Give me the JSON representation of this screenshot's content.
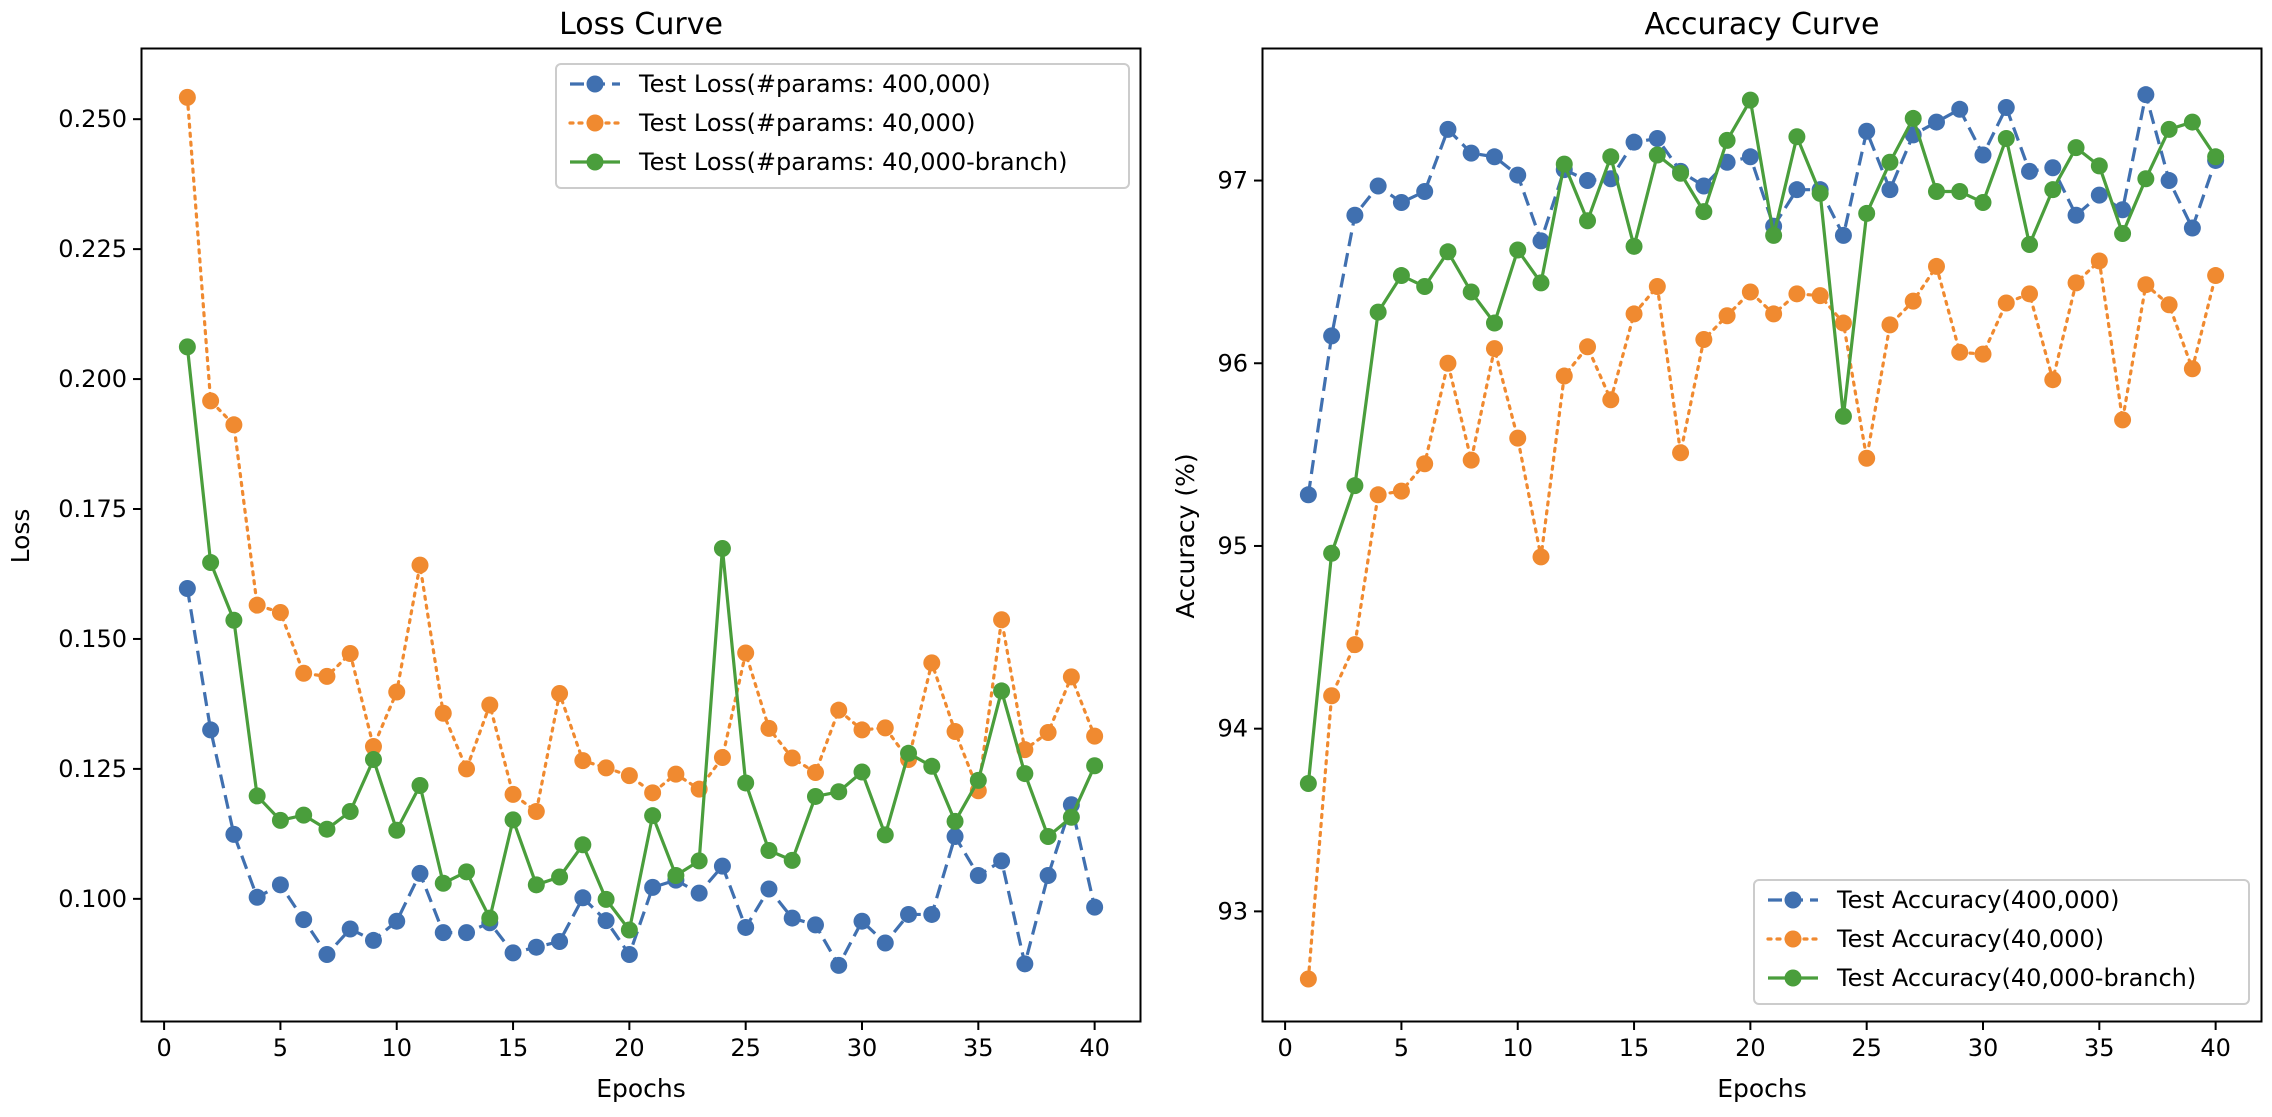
{
  "chart_data": [
    {
      "type": "line",
      "title": "Loss Curve",
      "xlabel": "Epochs",
      "ylabel": "Loss",
      "xlim": [
        -0.95,
        41.95
      ],
      "ylim": [
        0.0765,
        0.2635
      ],
      "xticks": [
        0,
        5,
        10,
        15,
        20,
        25,
        30,
        35,
        40
      ],
      "yticks": [
        0.1,
        0.125,
        0.15,
        0.175,
        0.2,
        0.225,
        0.25
      ],
      "ytick_labels": [
        "0.100",
        "0.125",
        "0.150",
        "0.175",
        "0.200",
        "0.225",
        "0.250"
      ],
      "legend_loc": "upper right",
      "grid": false,
      "x": [
        1,
        2,
        3,
        4,
        5,
        6,
        7,
        8,
        9,
        10,
        11,
        12,
        13,
        14,
        15,
        16,
        17,
        18,
        19,
        20,
        21,
        22,
        23,
        24,
        25,
        26,
        27,
        28,
        29,
        30,
        31,
        32,
        33,
        34,
        35,
        36,
        37,
        38,
        39,
        40
      ],
      "series": [
        {
          "name": "Test Loss(#params: 400,000)",
          "color": "#4070b0",
          "linestyle": "dashed",
          "values": [
            0.1597,
            0.1325,
            0.1124,
            0.1003,
            0.1027,
            0.096,
            0.0893,
            0.0942,
            0.092,
            0.0957,
            0.1049,
            0.0935,
            0.0935,
            0.0954,
            0.0896,
            0.0907,
            0.0918,
            0.1002,
            0.0958,
            0.0893,
            0.1022,
            0.1036,
            0.1011,
            0.1063,
            0.0945,
            0.1019,
            0.0963,
            0.095,
            0.0872,
            0.0957,
            0.0915,
            0.097,
            0.097,
            0.112,
            0.1045,
            0.1073,
            0.0875,
            0.1045,
            0.1181,
            0.0984
          ]
        },
        {
          "name": "Test Loss(#params: 40,000)",
          "color": "#f08a30",
          "linestyle": "dotted",
          "values": [
            0.2542,
            0.1958,
            0.1912,
            0.1565,
            0.1551,
            0.1434,
            0.1428,
            0.1472,
            0.1293,
            0.1398,
            0.1642,
            0.1357,
            0.125,
            0.1373,
            0.1201,
            0.1168,
            0.1395,
            0.1266,
            0.1252,
            0.1237,
            0.1204,
            0.124,
            0.1211,
            0.1272,
            0.1473,
            0.1328,
            0.1271,
            0.1243,
            0.1363,
            0.1325,
            0.1329,
            0.1268,
            0.1454,
            0.1322,
            0.1208,
            0.1537,
            0.1287,
            0.132,
            0.1427,
            0.1313
          ]
        },
        {
          "name": "Test Loss(#params: 40,000-branch)",
          "color": "#4a9e3c",
          "linestyle": "solid",
          "values": [
            0.2062,
            0.1647,
            0.1536,
            0.1198,
            0.1151,
            0.1161,
            0.1134,
            0.1168,
            0.1268,
            0.1132,
            0.1218,
            0.103,
            0.1052,
            0.0963,
            0.1152,
            0.1027,
            0.1042,
            0.1104,
            0.0999,
            0.094,
            0.116,
            0.1045,
            0.1073,
            0.1674,
            0.1223,
            0.1093,
            0.1074,
            0.1197,
            0.1206,
            0.1244,
            0.1123,
            0.128,
            0.1255,
            0.1149,
            0.1228,
            0.14,
            0.1241,
            0.112,
            0.1157,
            0.1256
          ]
        }
      ]
    },
    {
      "type": "line",
      "title": "Accuracy Curve",
      "xlabel": "Epochs",
      "ylabel": "Accuracy (%)",
      "xlim": [
        -0.95,
        41.95
      ],
      "ylim": [
        92.4,
        97.72
      ],
      "xticks": [
        0,
        5,
        10,
        15,
        20,
        25,
        30,
        35,
        40
      ],
      "yticks": [
        93,
        94,
        95,
        96,
        97
      ],
      "ytick_labels": [
        "93",
        "94",
        "95",
        "96",
        "97"
      ],
      "legend_loc": "lower right",
      "grid": false,
      "x": [
        1,
        2,
        3,
        4,
        5,
        6,
        7,
        8,
        9,
        10,
        11,
        12,
        13,
        14,
        15,
        16,
        17,
        18,
        19,
        20,
        21,
        22,
        23,
        24,
        25,
        26,
        27,
        28,
        29,
        30,
        31,
        32,
        33,
        34,
        35,
        36,
        37,
        38,
        39,
        40
      ],
      "series": [
        {
          "name": "Test Accuracy(400,000)",
          "color": "#4070b0",
          "linestyle": "dashed",
          "values": [
            95.28,
            96.15,
            96.81,
            96.97,
            96.88,
            96.94,
            97.28,
            97.15,
            97.13,
            97.03,
            96.67,
            97.06,
            97.0,
            97.01,
            97.21,
            97.23,
            97.05,
            96.97,
            97.1,
            97.13,
            96.75,
            96.95,
            96.95,
            96.7,
            97.27,
            96.95,
            97.25,
            97.32,
            97.39,
            97.14,
            97.4,
            97.05,
            97.07,
            96.81,
            96.92,
            96.84,
            97.47,
            97.0,
            96.74,
            97.11
          ]
        },
        {
          "name": "Test Accuracy(40,000)",
          "color": "#f08a30",
          "linestyle": "dotted",
          "values": [
            92.63,
            94.18,
            94.46,
            95.28,
            95.3,
            95.45,
            96.0,
            95.47,
            96.08,
            95.59,
            94.94,
            95.93,
            96.09,
            95.8,
            96.27,
            96.42,
            95.51,
            96.13,
            96.26,
            96.39,
            96.27,
            96.38,
            96.37,
            96.22,
            95.48,
            96.21,
            96.34,
            96.53,
            96.06,
            96.05,
            96.33,
            96.38,
            95.91,
            96.44,
            96.56,
            95.69,
            96.43,
            96.32,
            95.97,
            96.48
          ]
        },
        {
          "name": "Test Accuracy(40,000-branch)",
          "color": "#4a9e3c",
          "linestyle": "solid",
          "values": [
            93.7,
            94.96,
            95.33,
            96.28,
            96.48,
            96.42,
            96.61,
            96.39,
            96.22,
            96.62,
            96.44,
            97.09,
            96.78,
            97.13,
            96.64,
            97.14,
            97.04,
            96.83,
            97.22,
            97.44,
            96.7,
            97.24,
            96.93,
            95.71,
            96.82,
            97.1,
            97.34,
            96.94,
            96.94,
            96.88,
            97.23,
            96.65,
            96.95,
            97.18,
            97.08,
            96.71,
            97.01,
            97.28,
            97.32,
            97.13
          ]
        }
      ]
    }
  ]
}
